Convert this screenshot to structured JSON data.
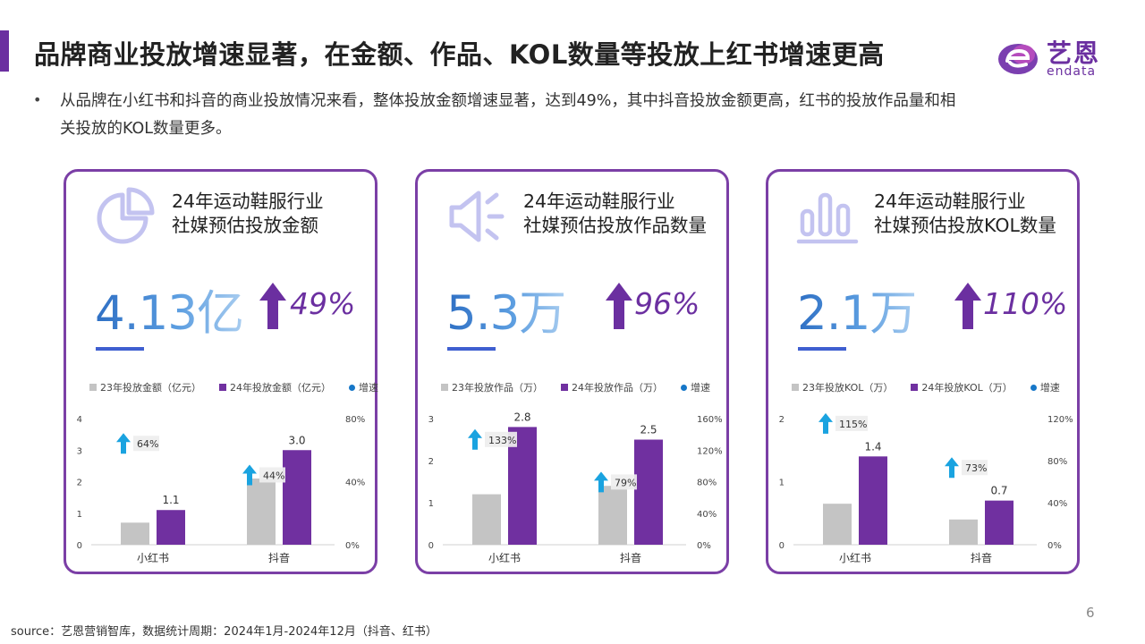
{
  "header": {
    "title": "品牌商业投放增速显著，在金额、作品、KOL数量等投放上红书增速更高",
    "logo_cn": "艺恩",
    "logo_en": "endata"
  },
  "intro": {
    "bullet": "•",
    "text": "从品牌在小红书和抖音的商业投放情况来看，整体投放金额增速显著，达到49%，其中抖音投放金额更高，红书的投放作品量和相关投放的KOL数量更多。"
  },
  "colors": {
    "accent": "#6b2fa0",
    "bar_23": "#c4c4c4",
    "bar_24": "#7030a0",
    "growth": "#1aa3e0",
    "number_blue": "#2e6fc4",
    "icon_lavender": "#c3c3f0"
  },
  "cards": [
    {
      "icon": "pie-chart-icon",
      "title_line1": "24年运动鞋服行业",
      "title_line2": "社媒预估投放金额",
      "big_number": "4.13亿",
      "growth": "49%"
    },
    {
      "icon": "speaker-icon",
      "title_line1": "24年运动鞋服行业",
      "title_line2": "社媒预估投放作品数量",
      "big_number": "5.3万",
      "growth": "96%"
    },
    {
      "icon": "bar-chart-icon",
      "title_line1": "24年运动鞋服行业",
      "title_line2": "社媒预估投放KOL数量",
      "big_number": "2.1万",
      "growth": "110%"
    }
  ],
  "chart_data": [
    {
      "type": "bar",
      "categories": [
        "小红书",
        "抖音"
      ],
      "series": [
        {
          "name": "23年投放金额（亿元）",
          "values": [
            0.7,
            2.1
          ]
        },
        {
          "name": "24年投放金额（亿元）",
          "values": [
            1.1,
            3.0
          ]
        },
        {
          "name": "增速",
          "values": [
            64,
            44
          ],
          "unit": "%"
        }
      ],
      "data_labels": [
        "1.1",
        "3.0"
      ],
      "growth_labels": [
        "64%",
        "44%"
      ],
      "ylim": [
        0,
        4
      ],
      "y_ticks": [
        "0",
        "1",
        "2",
        "3",
        "4"
      ],
      "y2lim": [
        0,
        80
      ],
      "y2_ticks": [
        "0%",
        "40%",
        "80%"
      ],
      "legend": "top"
    },
    {
      "type": "bar",
      "categories": [
        "小红书",
        "抖音"
      ],
      "series": [
        {
          "name": "23年投放作品（万）",
          "values": [
            1.2,
            1.4
          ]
        },
        {
          "name": "24年投放作品（万）",
          "values": [
            2.8,
            2.5
          ]
        },
        {
          "name": "增速",
          "values": [
            133,
            79
          ],
          "unit": "%"
        }
      ],
      "data_labels": [
        "2.8",
        "2.5"
      ],
      "growth_labels": [
        "133%",
        "79%"
      ],
      "ylim": [
        0,
        3
      ],
      "y_ticks": [
        "0",
        "1",
        "2",
        "3"
      ],
      "y2lim": [
        0,
        160
      ],
      "y2_ticks": [
        "0%",
        "40%",
        "80%",
        "120%",
        "160%"
      ],
      "legend": "top"
    },
    {
      "type": "bar",
      "categories": [
        "小红书",
        "抖音"
      ],
      "series": [
        {
          "name": "23年投放KOL（万）",
          "values": [
            0.65,
            0.4
          ]
        },
        {
          "name": "24年投放KOL（万）",
          "values": [
            1.4,
            0.7
          ]
        },
        {
          "name": "增速",
          "values": [
            115,
            73
          ],
          "unit": "%"
        }
      ],
      "data_labels": [
        "1.4",
        "0.7"
      ],
      "growth_labels": [
        "115%",
        "73%"
      ],
      "ylim": [
        0,
        2
      ],
      "y_ticks": [
        "0",
        "1",
        "2"
      ],
      "y2lim": [
        0,
        120
      ],
      "y2_ticks": [
        "0%",
        "40%",
        "80%",
        "120%"
      ],
      "legend": "top"
    }
  ],
  "footer": {
    "source": "source：艺恩营销智库，数据统计周期：2024年1月-2024年12月（抖音、红书）",
    "page": "6"
  }
}
